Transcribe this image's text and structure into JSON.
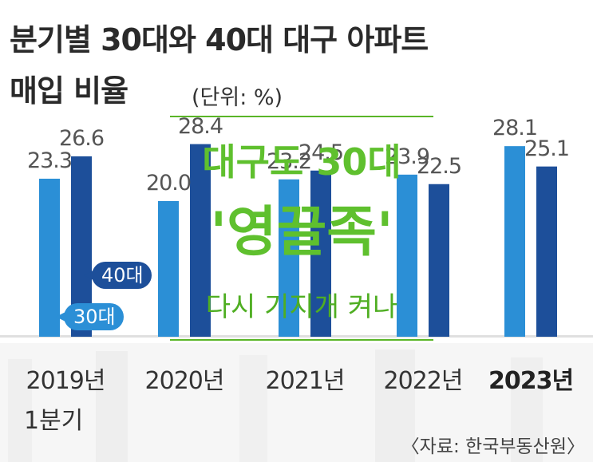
{
  "title_line1": "분기별 30대와 40대 대구 아파트",
  "title_line2": "매입 비율",
  "unit": "(단위: %)",
  "source": "〈자료: 한국부동산원〉",
  "overlay": {
    "line1": "대구도 30대",
    "line2": "'영끌족'",
    "line3": "다시 기지개 켜나",
    "color": "#5fc02e"
  },
  "chart_data": {
    "type": "bar",
    "categories": [
      "2019년",
      "2020년",
      "2021년",
      "2022년",
      "2023년"
    ],
    "category_sub": [
      "1분기",
      "",
      "",
      "",
      ""
    ],
    "series": [
      {
        "name": "30대",
        "color": "#2b8fd6",
        "values": [
          23.3,
          20.0,
          23.2,
          23.9,
          28.1
        ],
        "labels": [
          "23.3",
          "20.0",
          "23.2",
          "23.9",
          "28.1"
        ]
      },
      {
        "name": "40대",
        "color": "#1d4f9a",
        "values": [
          26.6,
          28.4,
          24.5,
          22.5,
          25.1
        ],
        "labels": [
          "26.6",
          "28.4",
          "24.5",
          "22.5",
          "25.1"
        ]
      }
    ],
    "ylim": [
      0,
      30
    ],
    "grid": false,
    "legend": "inline-left"
  }
}
